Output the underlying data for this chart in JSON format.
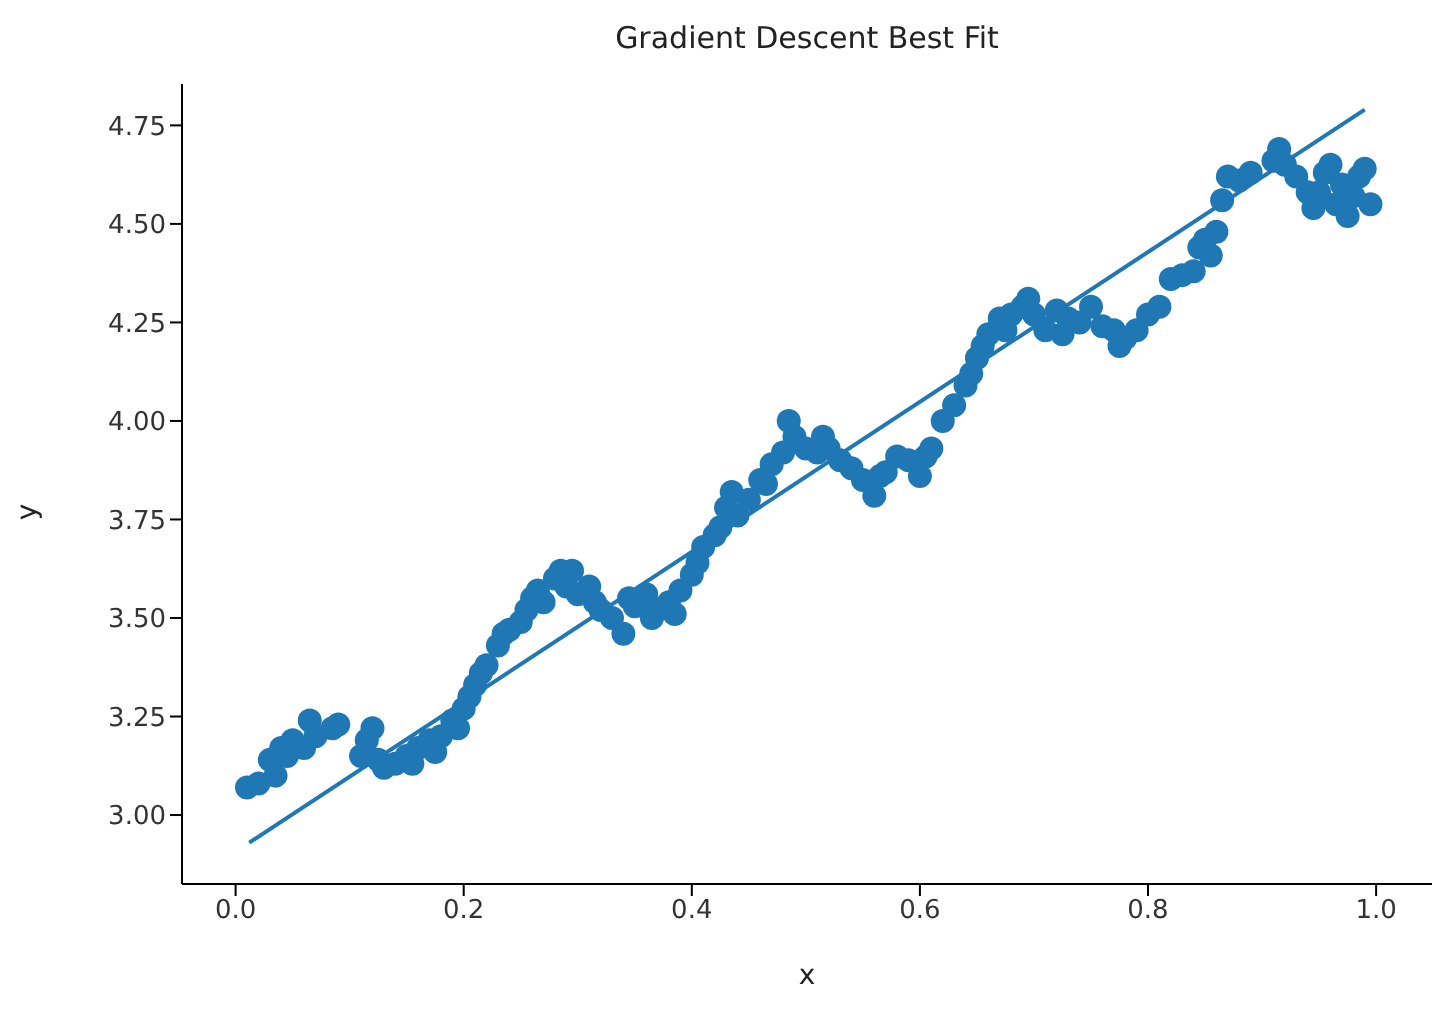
{
  "chart_data": {
    "type": "scatter",
    "title": "Gradient Descent Best Fit",
    "xlabel": "x",
    "ylabel": "y",
    "xlim": [
      -0.047,
      1.049
    ],
    "ylim": [
      2.825,
      4.855
    ],
    "xticks": [
      {
        "value": 0,
        "label": "0.0"
      },
      {
        "value": 0.2,
        "label": "0.2"
      },
      {
        "value": 0.4,
        "label": "0.4"
      },
      {
        "value": 0.6,
        "label": "0.6"
      },
      {
        "value": 0.8,
        "label": "0.8"
      },
      {
        "value": 1,
        "label": "1.0"
      }
    ],
    "yticks": [
      {
        "value": 3,
        "label": "3.00"
      },
      {
        "value": 3.25,
        "label": "3.25"
      },
      {
        "value": 3.5,
        "label": "3.50"
      },
      {
        "value": 3.75,
        "label": "3.75"
      },
      {
        "value": 4,
        "label": "4.00"
      },
      {
        "value": 4.25,
        "label": "4.25"
      },
      {
        "value": 4.5,
        "label": "4.50"
      },
      {
        "value": 4.75,
        "label": "4.75"
      }
    ],
    "series": [
      {
        "color": "#1f77b4",
        "marker": "circle",
        "x": [
          0.01,
          0.02,
          0.03,
          0.035,
          0.04,
          0.045,
          0.05,
          0.06,
          0.065,
          0.07,
          0.085,
          0.09,
          0.11,
          0.115,
          0.12,
          0.125,
          0.13,
          0.14,
          0.15,
          0.155,
          0.16,
          0.17,
          0.175,
          0.18,
          0.19,
          0.195,
          0.2,
          0.205,
          0.21,
          0.215,
          0.22,
          0.23,
          0.235,
          0.24,
          0.25,
          0.255,
          0.26,
          0.265,
          0.27,
          0.28,
          0.285,
          0.29,
          0.295,
          0.3,
          0.31,
          0.315,
          0.32,
          0.33,
          0.34,
          0.345,
          0.35,
          0.36,
          0.365,
          0.37,
          0.38,
          0.385,
          0.39,
          0.4,
          0.405,
          0.41,
          0.42,
          0.425,
          0.43,
          0.435,
          0.44,
          0.45,
          0.46,
          0.465,
          0.47,
          0.48,
          0.485,
          0.49,
          0.5,
          0.51,
          0.515,
          0.52,
          0.53,
          0.54,
          0.55,
          0.56,
          0.565,
          0.57,
          0.58,
          0.59,
          0.6,
          0.605,
          0.61,
          0.62,
          0.63,
          0.64,
          0.645,
          0.65,
          0.655,
          0.66,
          0.67,
          0.675,
          0.68,
          0.69,
          0.695,
          0.7,
          0.71,
          0.72,
          0.725,
          0.73,
          0.74,
          0.75,
          0.76,
          0.77,
          0.775,
          0.78,
          0.79,
          0.8,
          0.81,
          0.82,
          0.83,
          0.84,
          0.845,
          0.85,
          0.855,
          0.86,
          0.865,
          0.87,
          0.88,
          0.89,
          0.91,
          0.915,
          0.92,
          0.93,
          0.94,
          0.945,
          0.95,
          0.955,
          0.96,
          0.965,
          0.97,
          0.975,
          0.98,
          0.985,
          0.99,
          0.995
        ],
        "values": [
          3.07,
          3.08,
          3.14,
          3.1,
          3.17,
          3.15,
          3.19,
          3.17,
          3.24,
          3.2,
          3.22,
          3.23,
          3.15,
          3.19,
          3.22,
          3.14,
          3.12,
          3.13,
          3.15,
          3.13,
          3.17,
          3.19,
          3.16,
          3.2,
          3.24,
          3.22,
          3.27,
          3.3,
          3.33,
          3.36,
          3.38,
          3.43,
          3.46,
          3.47,
          3.49,
          3.52,
          3.55,
          3.57,
          3.54,
          3.6,
          3.62,
          3.58,
          3.62,
          3.56,
          3.58,
          3.54,
          3.52,
          3.5,
          3.46,
          3.55,
          3.53,
          3.56,
          3.5,
          3.52,
          3.54,
          3.51,
          3.57,
          3.61,
          3.64,
          3.68,
          3.71,
          3.73,
          3.78,
          3.82,
          3.76,
          3.8,
          3.85,
          3.84,
          3.89,
          3.92,
          4.0,
          3.96,
          3.93,
          3.92,
          3.96,
          3.93,
          3.9,
          3.88,
          3.85,
          3.81,
          3.86,
          3.87,
          3.91,
          3.9,
          3.86,
          3.91,
          3.93,
          4.0,
          4.04,
          4.09,
          4.12,
          4.16,
          4.19,
          4.22,
          4.26,
          4.23,
          4.27,
          4.29,
          4.31,
          4.27,
          4.23,
          4.28,
          4.22,
          4.26,
          4.25,
          4.29,
          4.24,
          4.23,
          4.19,
          4.21,
          4.23,
          4.27,
          4.29,
          4.36,
          4.37,
          4.38,
          4.44,
          4.46,
          4.42,
          4.48,
          4.56,
          4.62,
          4.61,
          4.63,
          4.66,
          4.69,
          4.65,
          4.62,
          4.58,
          4.54,
          4.58,
          4.63,
          4.65,
          4.55,
          4.6,
          4.52,
          4.57,
          4.62,
          4.64,
          4.55
        ]
      },
      {
        "type": "line",
        "color": "#1f77b4",
        "marker": "none",
        "x": [
          0.012,
          0.99
        ],
        "values": [
          2.93,
          4.79
        ]
      }
    ]
  }
}
